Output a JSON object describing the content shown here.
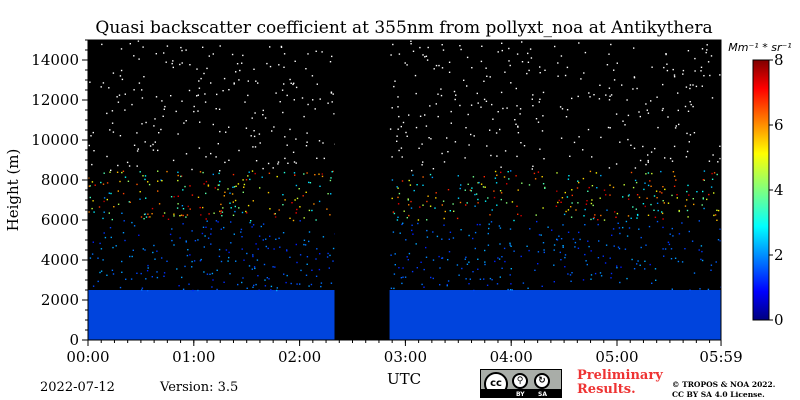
{
  "chart_data": {
    "type": "heatmap",
    "title": "Quasi backscatter coefficient at 355nm from pollyxt_noa at Antikythera",
    "xlabel": "UTC",
    "ylabel": "Height (m)",
    "x_range_hours": [
      0,
      5.983
    ],
    "ylim": [
      0,
      15000
    ],
    "x_ticks": [
      "00:00",
      "01:00",
      "02:00",
      "03:00",
      "04:00",
      "05:00",
      "05:59"
    ],
    "y_ticks": [
      0,
      2000,
      4000,
      6000,
      8000,
      10000,
      12000,
      14000
    ],
    "colorbar": {
      "label": "Mm⁻¹ * sr⁻¹",
      "range": [
        0,
        8
      ],
      "ticks": [
        0,
        2,
        4,
        6,
        8
      ],
      "colormap": "jet"
    },
    "no_data_hours": [
      2.33,
      2.85
    ],
    "boundary_layer_height_m": 2500,
    "dense_aerosol_layer_top_m": 6000,
    "noisy_layer_top_m": 8500
  },
  "footer": {
    "date": "2022-07-12",
    "version": "Version: 3.5",
    "preliminary_line1": "Preliminary",
    "preliminary_line2": "Results.",
    "copyright_line1": "© TROPOS & NOA 2022.",
    "copyright_line2": "CC BY SA 4.0 License.",
    "license_icon_name": "cc-by-sa-icon",
    "license_main": "cc",
    "license_by": "BY",
    "license_sa": "SA"
  },
  "colors": {
    "background": "#000000",
    "boundary_layer": "#0044dd",
    "preliminary_text": "#ee3333"
  }
}
